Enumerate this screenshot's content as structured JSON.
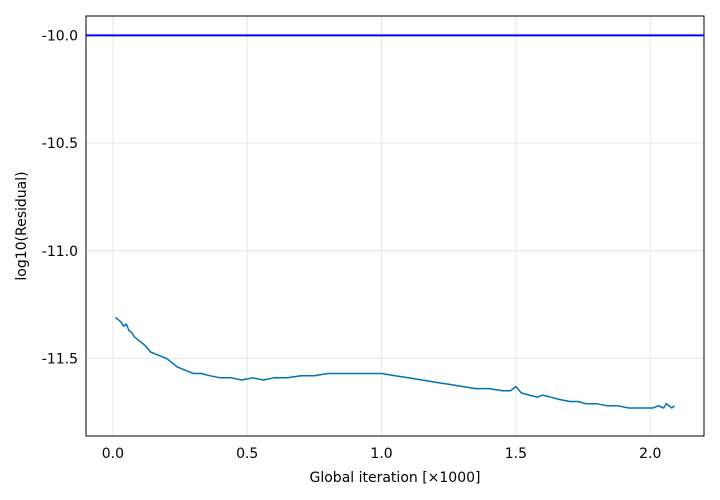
{
  "chart_data": {
    "type": "line",
    "title": "",
    "xlabel": "Global iteration [×1000]",
    "ylabel": "log10(Residual)",
    "xlim": [
      -0.1,
      2.2
    ],
    "ylim": [
      -11.86,
      -9.91
    ],
    "x_ticks": [
      0.0,
      0.5,
      1.0,
      1.5,
      2.0
    ],
    "x_tick_labels": [
      "0.0",
      "0.5",
      "1.0",
      "1.5",
      "2.0"
    ],
    "y_ticks": [
      -10.0,
      -10.5,
      -11.0,
      -11.5
    ],
    "y_tick_labels": [
      "-10.0",
      "-10.5",
      "-11.0",
      "-11.5"
    ],
    "grid": true,
    "colors": {
      "residual": "#0072b2",
      "threshold": "#0000ff",
      "grid": "#e6e6e6",
      "frame": "#000000"
    },
    "threshold": {
      "y": -10.0
    },
    "series": [
      {
        "x": [
          0.01,
          0.02,
          0.03,
          0.04,
          0.05,
          0.06,
          0.07,
          0.08,
          0.09,
          0.1,
          0.12,
          0.14,
          0.16,
          0.18,
          0.2,
          0.22,
          0.24,
          0.26,
          0.28,
          0.3,
          0.33,
          0.36,
          0.4,
          0.44,
          0.48,
          0.52,
          0.56,
          0.6,
          0.65,
          0.7,
          0.75,
          0.8,
          0.85,
          0.9,
          0.95,
          1.0,
          1.05,
          1.1,
          1.15,
          1.2,
          1.25,
          1.3,
          1.35,
          1.4,
          1.45,
          1.48,
          1.5,
          1.52,
          1.55,
          1.58,
          1.6,
          1.63,
          1.66,
          1.7,
          1.73,
          1.76,
          1.8,
          1.84,
          1.88,
          1.92,
          1.95,
          1.98,
          2.01,
          2.03,
          2.05,
          2.06,
          2.08,
          2.09
        ],
        "values": [
          -11.31,
          -11.32,
          -11.33,
          -11.35,
          -11.34,
          -11.37,
          -11.38,
          -11.4,
          -11.41,
          -11.42,
          -11.44,
          -11.47,
          -11.48,
          -11.49,
          -11.5,
          -11.52,
          -11.54,
          -11.55,
          -11.56,
          -11.57,
          -11.57,
          -11.58,
          -11.59,
          -11.59,
          -11.6,
          -11.59,
          -11.6,
          -11.59,
          -11.59,
          -11.58,
          -11.58,
          -11.57,
          -11.57,
          -11.57,
          -11.57,
          -11.57,
          -11.58,
          -11.59,
          -11.6,
          -11.61,
          -11.62,
          -11.63,
          -11.64,
          -11.64,
          -11.65,
          -11.65,
          -11.63,
          -11.66,
          -11.67,
          -11.68,
          -11.67,
          -11.68,
          -11.69,
          -11.7,
          -11.7,
          -11.71,
          -11.71,
          -11.72,
          -11.72,
          -11.73,
          -11.73,
          -11.73,
          -11.73,
          -11.72,
          -11.73,
          -11.71,
          -11.73,
          -11.72
        ]
      }
    ]
  }
}
